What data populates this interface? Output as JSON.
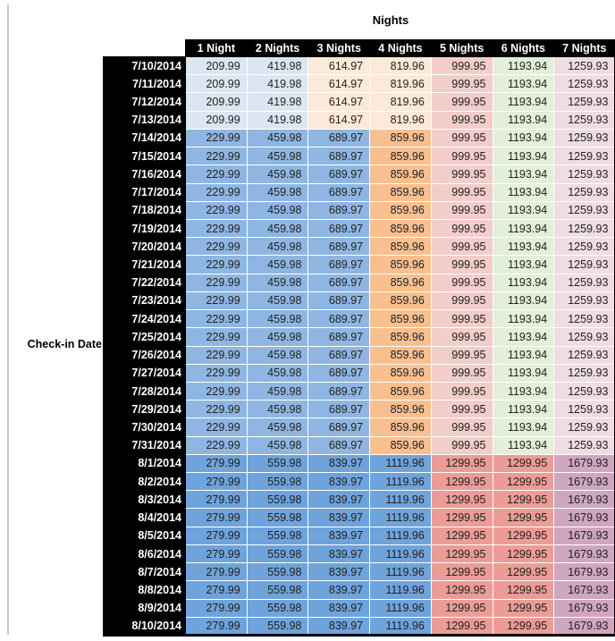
{
  "chart_data": {
    "type": "table",
    "title": "Nights",
    "row_axis_label": "Check-in Date",
    "columns": [
      "1 Night",
      "2 Nights",
      "3 Nights",
      "4 Nights",
      "5 Nights",
      "6 Nights",
      "7 Nights"
    ],
    "rows": [
      {
        "date": "7/10/2014",
        "band": "early",
        "values": [
          209.99,
          419.98,
          614.97,
          819.96,
          999.95,
          1193.94,
          1259.93
        ]
      },
      {
        "date": "7/11/2014",
        "band": "early",
        "values": [
          209.99,
          419.98,
          614.97,
          819.96,
          999.95,
          1193.94,
          1259.93
        ]
      },
      {
        "date": "7/12/2014",
        "band": "early",
        "values": [
          209.99,
          419.98,
          614.97,
          819.96,
          999.95,
          1193.94,
          1259.93
        ]
      },
      {
        "date": "7/13/2014",
        "band": "early",
        "values": [
          209.99,
          419.98,
          614.97,
          819.96,
          999.95,
          1193.94,
          1259.93
        ]
      },
      {
        "date": "7/14/2014",
        "band": "mid",
        "values": [
          229.99,
          459.98,
          689.97,
          859.96,
          999.95,
          1193.94,
          1259.93
        ]
      },
      {
        "date": "7/15/2014",
        "band": "mid",
        "values": [
          229.99,
          459.98,
          689.97,
          859.96,
          999.95,
          1193.94,
          1259.93
        ]
      },
      {
        "date": "7/16/2014",
        "band": "mid",
        "values": [
          229.99,
          459.98,
          689.97,
          859.96,
          999.95,
          1193.94,
          1259.93
        ]
      },
      {
        "date": "7/17/2014",
        "band": "mid",
        "values": [
          229.99,
          459.98,
          689.97,
          859.96,
          999.95,
          1193.94,
          1259.93
        ]
      },
      {
        "date": "7/18/2014",
        "band": "mid",
        "values": [
          229.99,
          459.98,
          689.97,
          859.96,
          999.95,
          1193.94,
          1259.93
        ]
      },
      {
        "date": "7/19/2014",
        "band": "mid",
        "values": [
          229.99,
          459.98,
          689.97,
          859.96,
          999.95,
          1193.94,
          1259.93
        ]
      },
      {
        "date": "7/20/2014",
        "band": "mid",
        "values": [
          229.99,
          459.98,
          689.97,
          859.96,
          999.95,
          1193.94,
          1259.93
        ]
      },
      {
        "date": "7/21/2014",
        "band": "mid",
        "values": [
          229.99,
          459.98,
          689.97,
          859.96,
          999.95,
          1193.94,
          1259.93
        ]
      },
      {
        "date": "7/22/2014",
        "band": "mid",
        "values": [
          229.99,
          459.98,
          689.97,
          859.96,
          999.95,
          1193.94,
          1259.93
        ]
      },
      {
        "date": "7/23/2014",
        "band": "mid",
        "values": [
          229.99,
          459.98,
          689.97,
          859.96,
          999.95,
          1193.94,
          1259.93
        ]
      },
      {
        "date": "7/24/2014",
        "band": "mid",
        "values": [
          229.99,
          459.98,
          689.97,
          859.96,
          999.95,
          1193.94,
          1259.93
        ]
      },
      {
        "date": "7/25/2014",
        "band": "mid",
        "values": [
          229.99,
          459.98,
          689.97,
          859.96,
          999.95,
          1193.94,
          1259.93
        ]
      },
      {
        "date": "7/26/2014",
        "band": "mid",
        "values": [
          229.99,
          459.98,
          689.97,
          859.96,
          999.95,
          1193.94,
          1259.93
        ]
      },
      {
        "date": "7/27/2014",
        "band": "mid",
        "values": [
          229.99,
          459.98,
          689.97,
          859.96,
          999.95,
          1193.94,
          1259.93
        ]
      },
      {
        "date": "7/28/2014",
        "band": "mid",
        "values": [
          229.99,
          459.98,
          689.97,
          859.96,
          999.95,
          1193.94,
          1259.93
        ]
      },
      {
        "date": "7/29/2014",
        "band": "mid",
        "values": [
          229.99,
          459.98,
          689.97,
          859.96,
          999.95,
          1193.94,
          1259.93
        ]
      },
      {
        "date": "7/30/2014",
        "band": "mid",
        "values": [
          229.99,
          459.98,
          689.97,
          859.96,
          999.95,
          1193.94,
          1259.93
        ]
      },
      {
        "date": "7/31/2014",
        "band": "mid",
        "values": [
          229.99,
          459.98,
          689.97,
          859.96,
          999.95,
          1193.94,
          1259.93
        ]
      },
      {
        "date": "8/1/2014",
        "band": "late",
        "values": [
          279.99,
          559.98,
          839.97,
          1119.96,
          1299.95,
          1299.95,
          1679.93
        ]
      },
      {
        "date": "8/2/2014",
        "band": "late",
        "values": [
          279.99,
          559.98,
          839.97,
          1119.96,
          1299.95,
          1299.95,
          1679.93
        ]
      },
      {
        "date": "8/3/2014",
        "band": "late",
        "values": [
          279.99,
          559.98,
          839.97,
          1119.96,
          1299.95,
          1299.95,
          1679.93
        ]
      },
      {
        "date": "8/4/2014",
        "band": "late",
        "values": [
          279.99,
          559.98,
          839.97,
          1119.96,
          1299.95,
          1299.95,
          1679.93
        ]
      },
      {
        "date": "8/5/2014",
        "band": "late",
        "values": [
          279.99,
          559.98,
          839.97,
          1119.96,
          1299.95,
          1299.95,
          1679.93
        ]
      },
      {
        "date": "8/6/2014",
        "band": "late",
        "values": [
          279.99,
          559.98,
          839.97,
          1119.96,
          1299.95,
          1299.95,
          1679.93
        ]
      },
      {
        "date": "8/7/2014",
        "band": "late",
        "values": [
          279.99,
          559.98,
          839.97,
          1119.96,
          1299.95,
          1299.95,
          1679.93
        ]
      },
      {
        "date": "8/8/2014",
        "band": "late",
        "values": [
          279.99,
          559.98,
          839.97,
          1119.96,
          1299.95,
          1299.95,
          1679.93
        ]
      },
      {
        "date": "8/9/2014",
        "band": "late",
        "values": [
          279.99,
          559.98,
          839.97,
          1119.96,
          1299.95,
          1299.95,
          1679.93
        ]
      },
      {
        "date": "8/10/2014",
        "band": "late",
        "values": [
          279.99,
          559.98,
          839.97,
          1119.96,
          1299.95,
          1299.95,
          1679.93
        ]
      }
    ]
  },
  "colors": {
    "header_bg": "#000000",
    "header_text": "#ffffff",
    "value_text": "#222222",
    "band_cell_colors": {
      "early": [
        "#DCE6F2",
        "#DCE6F2",
        "#FDE9D8",
        "#FDE9D8",
        "#F2CDCA",
        "#E3EFD9",
        "#EFDCE4"
      ],
      "mid": [
        "#8FB6E2",
        "#8FB6E2",
        "#8FB6E2",
        "#FABF8F",
        "#F2CDCA",
        "#E3EFD9",
        "#EFDCE4"
      ],
      "late": [
        "#6FA3DB",
        "#6FA3DB",
        "#6FA3DB",
        "#6FA3DB",
        "#EC9C96",
        "#EC9C96",
        "#CFA5C0"
      ]
    }
  }
}
